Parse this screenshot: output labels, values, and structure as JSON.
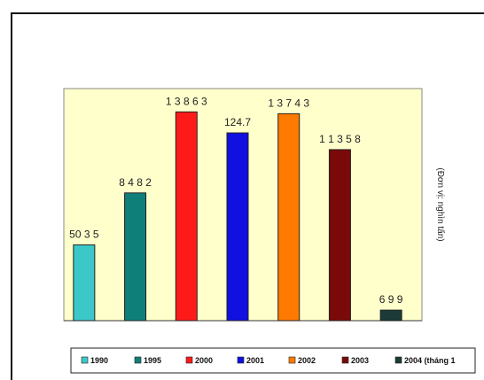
{
  "chart_data": {
    "type": "bar",
    "categories": [
      "1990",
      "1995",
      "2000",
      "2001",
      "2002",
      "2003",
      "2004 (tháng 1"
    ],
    "values": [
      50.35,
      84.82,
      138.63,
      124.7,
      137.43,
      113.58,
      6.99
    ],
    "value_labels": [
      "50 3 5",
      "8 4 8 2",
      "1 3 8 6 3",
      "124.7",
      "1 3 7 4 3",
      "1 1 3 5 8",
      "6 9 9"
    ],
    "colors": [
      "#3cc8c8",
      "#0f7f7a",
      "#ff1a1a",
      "#1010e0",
      "#ff7a00",
      "#7a0a0a",
      "#1c3a38"
    ],
    "ylabel": "(Đơn vị: nghìn tấn)",
    "xlabel": "",
    "title": "",
    "ylim": [
      0,
      140
    ],
    "plot_background": "#ffffcc",
    "legend_position": "bottom",
    "grid": false
  }
}
